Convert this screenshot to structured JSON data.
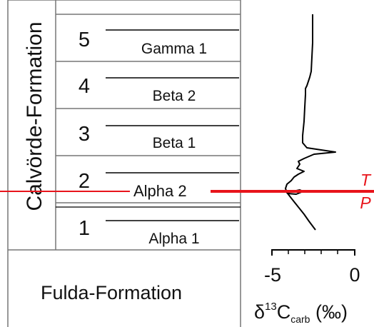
{
  "formation_upper": "Calvörde-Formation",
  "formation_lower": "Fulda-Formation",
  "units": [
    {
      "number": "5",
      "subunit": "Gamma 1"
    },
    {
      "number": "4",
      "subunit": "Beta 2"
    },
    {
      "number": "3",
      "subunit": "Beta 1"
    },
    {
      "number": "2",
      "subunit": "Alpha 2"
    },
    {
      "number": "1",
      "subunit": "Alpha 1"
    }
  ],
  "boundary": {
    "upper_label": "T",
    "lower_label": "P",
    "color": "#e8141b"
  },
  "axis": {
    "tick_labels": [
      "-5",
      "0"
    ],
    "label_main": "δ",
    "label_sup": "13",
    "label_c": "C",
    "label_sub": "carb",
    "label_unit": " (‰)"
  },
  "colors": {
    "line": "#000000",
    "grid": "#777777",
    "boundary": "#e8141b"
  }
}
